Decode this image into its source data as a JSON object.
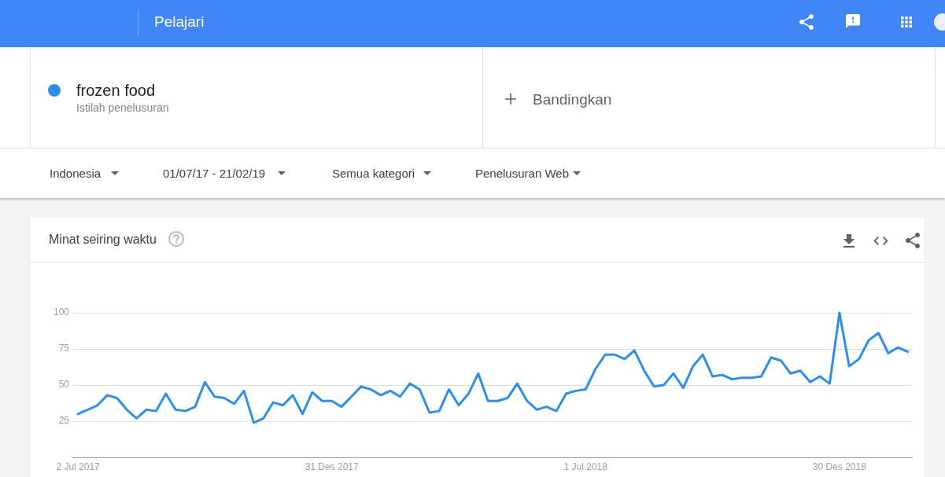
{
  "chart_data": {
    "type": "line",
    "title": "Minat seiring waktu",
    "annotations": [
      "Pelajari",
      "Istilah penelusuran",
      "Bandingkan",
      "Indonesia",
      "01/07/17 - 21/02/19",
      "Semua kategori",
      "Penelusuran Web"
    ],
    "x": [
      "2017-07-02",
      "2017-07-09",
      "2017-07-16",
      "2017-07-23",
      "2017-07-30",
      "2017-08-06",
      "2017-08-13",
      "2017-08-20",
      "2017-08-27",
      "2017-09-03",
      "2017-09-10",
      "2017-09-17",
      "2017-09-24",
      "2017-10-01",
      "2017-10-08",
      "2017-10-15",
      "2017-10-22",
      "2017-10-29",
      "2017-11-05",
      "2017-11-12",
      "2017-11-19",
      "2017-11-26",
      "2017-12-03",
      "2017-12-10",
      "2017-12-17",
      "2017-12-24",
      "2017-12-31",
      "2018-01-07",
      "2018-01-14",
      "2018-01-21",
      "2018-01-28",
      "2018-02-04",
      "2018-02-11",
      "2018-02-18",
      "2018-02-25",
      "2018-03-04",
      "2018-03-11",
      "2018-03-18",
      "2018-03-25",
      "2018-04-01",
      "2018-04-08",
      "2018-04-15",
      "2018-04-22",
      "2018-04-29",
      "2018-05-06",
      "2018-05-13",
      "2018-05-20",
      "2018-05-27",
      "2018-06-03",
      "2018-06-10",
      "2018-06-17",
      "2018-06-24",
      "2018-07-01",
      "2018-07-08",
      "2018-07-15",
      "2018-07-22",
      "2018-07-29",
      "2018-08-05",
      "2018-08-12",
      "2018-08-19",
      "2018-08-26",
      "2018-09-02",
      "2018-09-09",
      "2018-09-16",
      "2018-09-23",
      "2018-09-30",
      "2018-10-07",
      "2018-10-14",
      "2018-10-21",
      "2018-10-28",
      "2018-11-04",
      "2018-11-11",
      "2018-11-18",
      "2018-11-25",
      "2018-12-02",
      "2018-12-09",
      "2018-12-16",
      "2018-12-23",
      "2018-12-30",
      "2019-01-06",
      "2019-01-13",
      "2019-01-20",
      "2019-01-27",
      "2019-02-03",
      "2019-02-10",
      "2019-02-17"
    ],
    "series": [
      {
        "name": "frozen food",
        "color": "#2f8fe8",
        "values": [
          30,
          33,
          36,
          43,
          41,
          33,
          27,
          33,
          32,
          44,
          33,
          32,
          35,
          52,
          42,
          41,
          37,
          46,
          24,
          27,
          38,
          36,
          43,
          30,
          45,
          39,
          39,
          35,
          42,
          49,
          47,
          43,
          46,
          42,
          51,
          47,
          31,
          32,
          47,
          36,
          44,
          58,
          39,
          39,
          41,
          51,
          39,
          33,
          35,
          32,
          44,
          46,
          47,
          61,
          71,
          71,
          68,
          74,
          60,
          49,
          50,
          58,
          48,
          63,
          71,
          56,
          57,
          54,
          55,
          55,
          56,
          69,
          67,
          58,
          60,
          52,
          56,
          51,
          100,
          63,
          68,
          81,
          86,
          72,
          76,
          73
        ]
      }
    ],
    "xlim": [
      "2017-06-28",
      "2019-02-20"
    ],
    "xticks": [
      {
        "value": "2017-07-02",
        "label": "2 Jul 2017"
      },
      {
        "value": "2017-12-31",
        "label": "31 Des 2017"
      },
      {
        "value": "2018-07-01",
        "label": "1 Jul 2018"
      },
      {
        "value": "2018-12-30",
        "label": "30 Des 2018"
      }
    ],
    "ylim": [
      0,
      100
    ],
    "yticks": [
      25,
      50,
      75,
      100
    ],
    "grid": "y",
    "legend": "top left"
  }
}
